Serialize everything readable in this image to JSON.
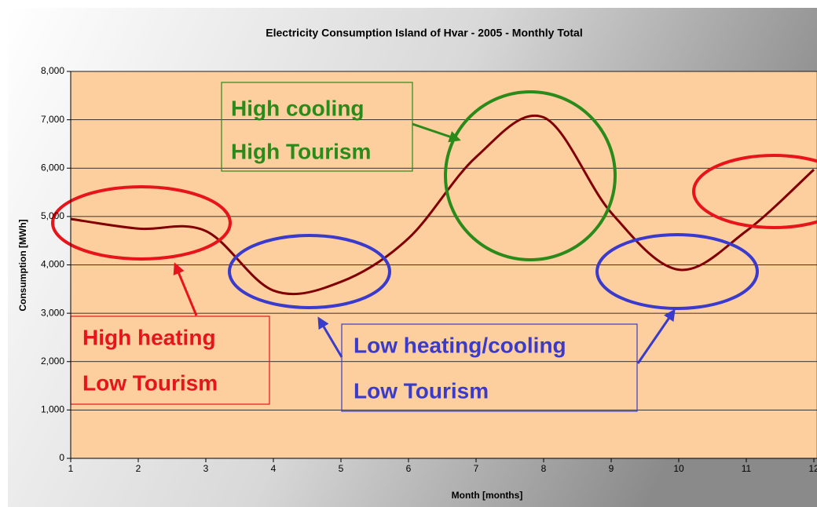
{
  "chart_data": {
    "type": "line",
    "title": "Electricity Consumption Island of Hvar - 2005 - Monthly Total",
    "x_label": "Month [months]",
    "y_label": "Consumption [MWh]",
    "x": [
      1,
      2,
      3,
      4,
      5,
      6,
      7,
      8,
      9,
      10,
      11,
      12
    ],
    "series": [
      {
        "name": "Consumption",
        "color": "#800000",
        "values": [
          4950,
          4750,
          4700,
          3470,
          3650,
          4550,
          6230,
          7050,
          5080,
          3900,
          4700,
          5970
        ]
      }
    ],
    "xlim": [
      1,
      12
    ],
    "xticks": [
      1,
      2,
      3,
      4,
      5,
      6,
      7,
      8,
      9,
      10,
      11,
      12
    ],
    "ylim": [
      0,
      8000
    ],
    "yticks": [
      0,
      {
        "value": 1000,
        "label": "1,000"
      },
      {
        "value": 2000,
        "label": "2,000"
      },
      {
        "value": 3000,
        "label": "3,000"
      },
      {
        "value": 4000,
        "label": "4,000"
      },
      {
        "value": 5000,
        "label": "5,000"
      },
      {
        "value": 6000,
        "label": "6,000"
      },
      {
        "value": 7000,
        "label": "7,000"
      },
      {
        "value": 8000,
        "label": "8,000"
      }
    ],
    "grid": true,
    "annotations": [
      "High cooling",
      "High Tourism",
      "High heating",
      "Low Tourism",
      "Low heating/cooling",
      "Low Tourism"
    ]
  }
}
